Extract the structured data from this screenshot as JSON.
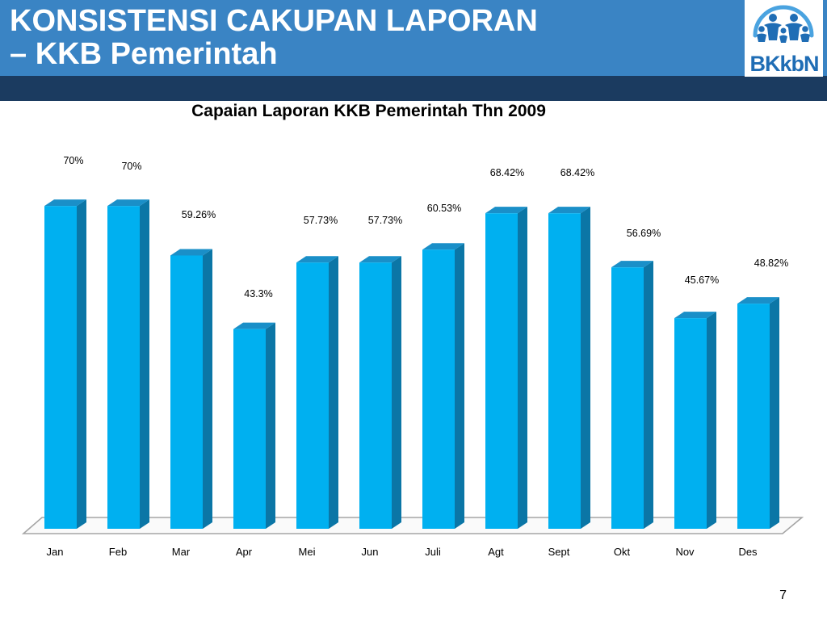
{
  "slide": {
    "title_line1": "KONSISTENSI CAKUPAN LAPORAN",
    "title_line2": "– KKB Pemerintah",
    "page_number": "7"
  },
  "logo": {
    "text": "BKkbN",
    "icon": "bkkbn-family-arch-logo"
  },
  "colors": {
    "header_band": "#3a84c4",
    "header_strip": "#1b3b60",
    "title_text": "#ffffff",
    "bar_front": "#00b0f0",
    "bar_top": "#1a8fc8",
    "bar_side": "#0b76a6",
    "logo_blue": "#1f6db5",
    "logo_arch": "#4aa3e0"
  },
  "chart_data": {
    "type": "bar",
    "three_d": true,
    "title": "Capaian Laporan KKB Pemerintah Thn 2009",
    "categories": [
      "Jan",
      "Feb",
      "Mar",
      "Apr",
      "Mei",
      "Jun",
      "Juli",
      "Agt",
      "Sept",
      "Okt",
      "Nov",
      "Des"
    ],
    "values": [
      70,
      70,
      59.26,
      43.3,
      57.73,
      57.73,
      60.53,
      68.42,
      68.42,
      56.69,
      45.67,
      48.82
    ],
    "data_labels": [
      "70%",
      "70%",
      "59.26%",
      "43.3%",
      "57.73%",
      "57.73%",
      "60.53%",
      "68.42%",
      "68.42%",
      "56.69%",
      "45.67%",
      "48.82%"
    ],
    "xlabel": "",
    "ylabel": "",
    "ylim": [
      0,
      80
    ],
    "y_axis_visible": false,
    "grid": false,
    "legend": "none"
  }
}
